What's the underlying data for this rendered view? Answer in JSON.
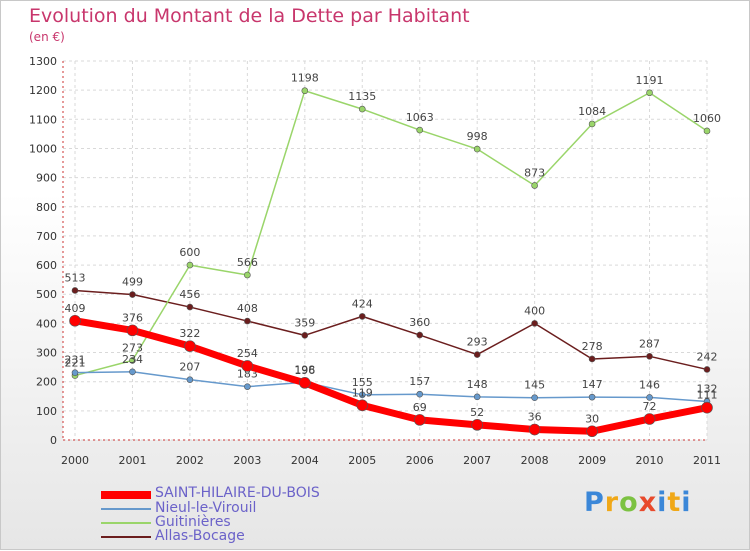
{
  "chart_data": {
    "type": "line",
    "title": "Evolution du Montant de la Dette par Habitant",
    "subtitle": "(en €)",
    "x": [
      "2000",
      "2001",
      "2002",
      "2003",
      "2004",
      "2005",
      "2006",
      "2007",
      "2008",
      "2009",
      "2010",
      "2011"
    ],
    "ylim": [
      0,
      1300
    ],
    "yticks": [
      0,
      100,
      200,
      300,
      400,
      500,
      600,
      700,
      800,
      900,
      1000,
      1100,
      1200,
      1300
    ],
    "grid": true,
    "legend_placement": "bottom-left",
    "series": [
      {
        "name": "Allas-Bocage",
        "color": "#6b1e1e",
        "width": 1.5,
        "values": [
          513,
          499,
          456,
          408,
          359,
          424,
          360,
          293,
          400,
          278,
          287,
          242
        ]
      },
      {
        "name": "Guitinières",
        "color": "#9ad56a",
        "width": 1.5,
        "values": [
          221,
          273,
          600,
          566,
          1198,
          1135,
          1063,
          998,
          873,
          1084,
          1191,
          1060
        ]
      },
      {
        "name": "Nieul-le-Virouil",
        "color": "#6699cc",
        "width": 1.5,
        "values": [
          231,
          234,
          207,
          183,
          198,
          155,
          157,
          148,
          145,
          147,
          146,
          132
        ]
      },
      {
        "name": "SAINT-HILAIRE-DU-BOIS",
        "color": "#ff0000",
        "width": 7,
        "values": [
          409,
          376,
          322,
          254,
          196,
          119,
          69,
          52,
          36,
          30,
          72,
          111
        ]
      }
    ],
    "legend_order": [
      "SAINT-HILAIRE-DU-BOIS",
      "Nieul-le-Virouil",
      "Guitinières",
      "Allas-Bocage"
    ]
  },
  "logo": {
    "p": "P",
    "r": "r",
    "o": "o",
    "x": "x",
    "i": "i",
    "t": "t",
    "i2": "i"
  }
}
